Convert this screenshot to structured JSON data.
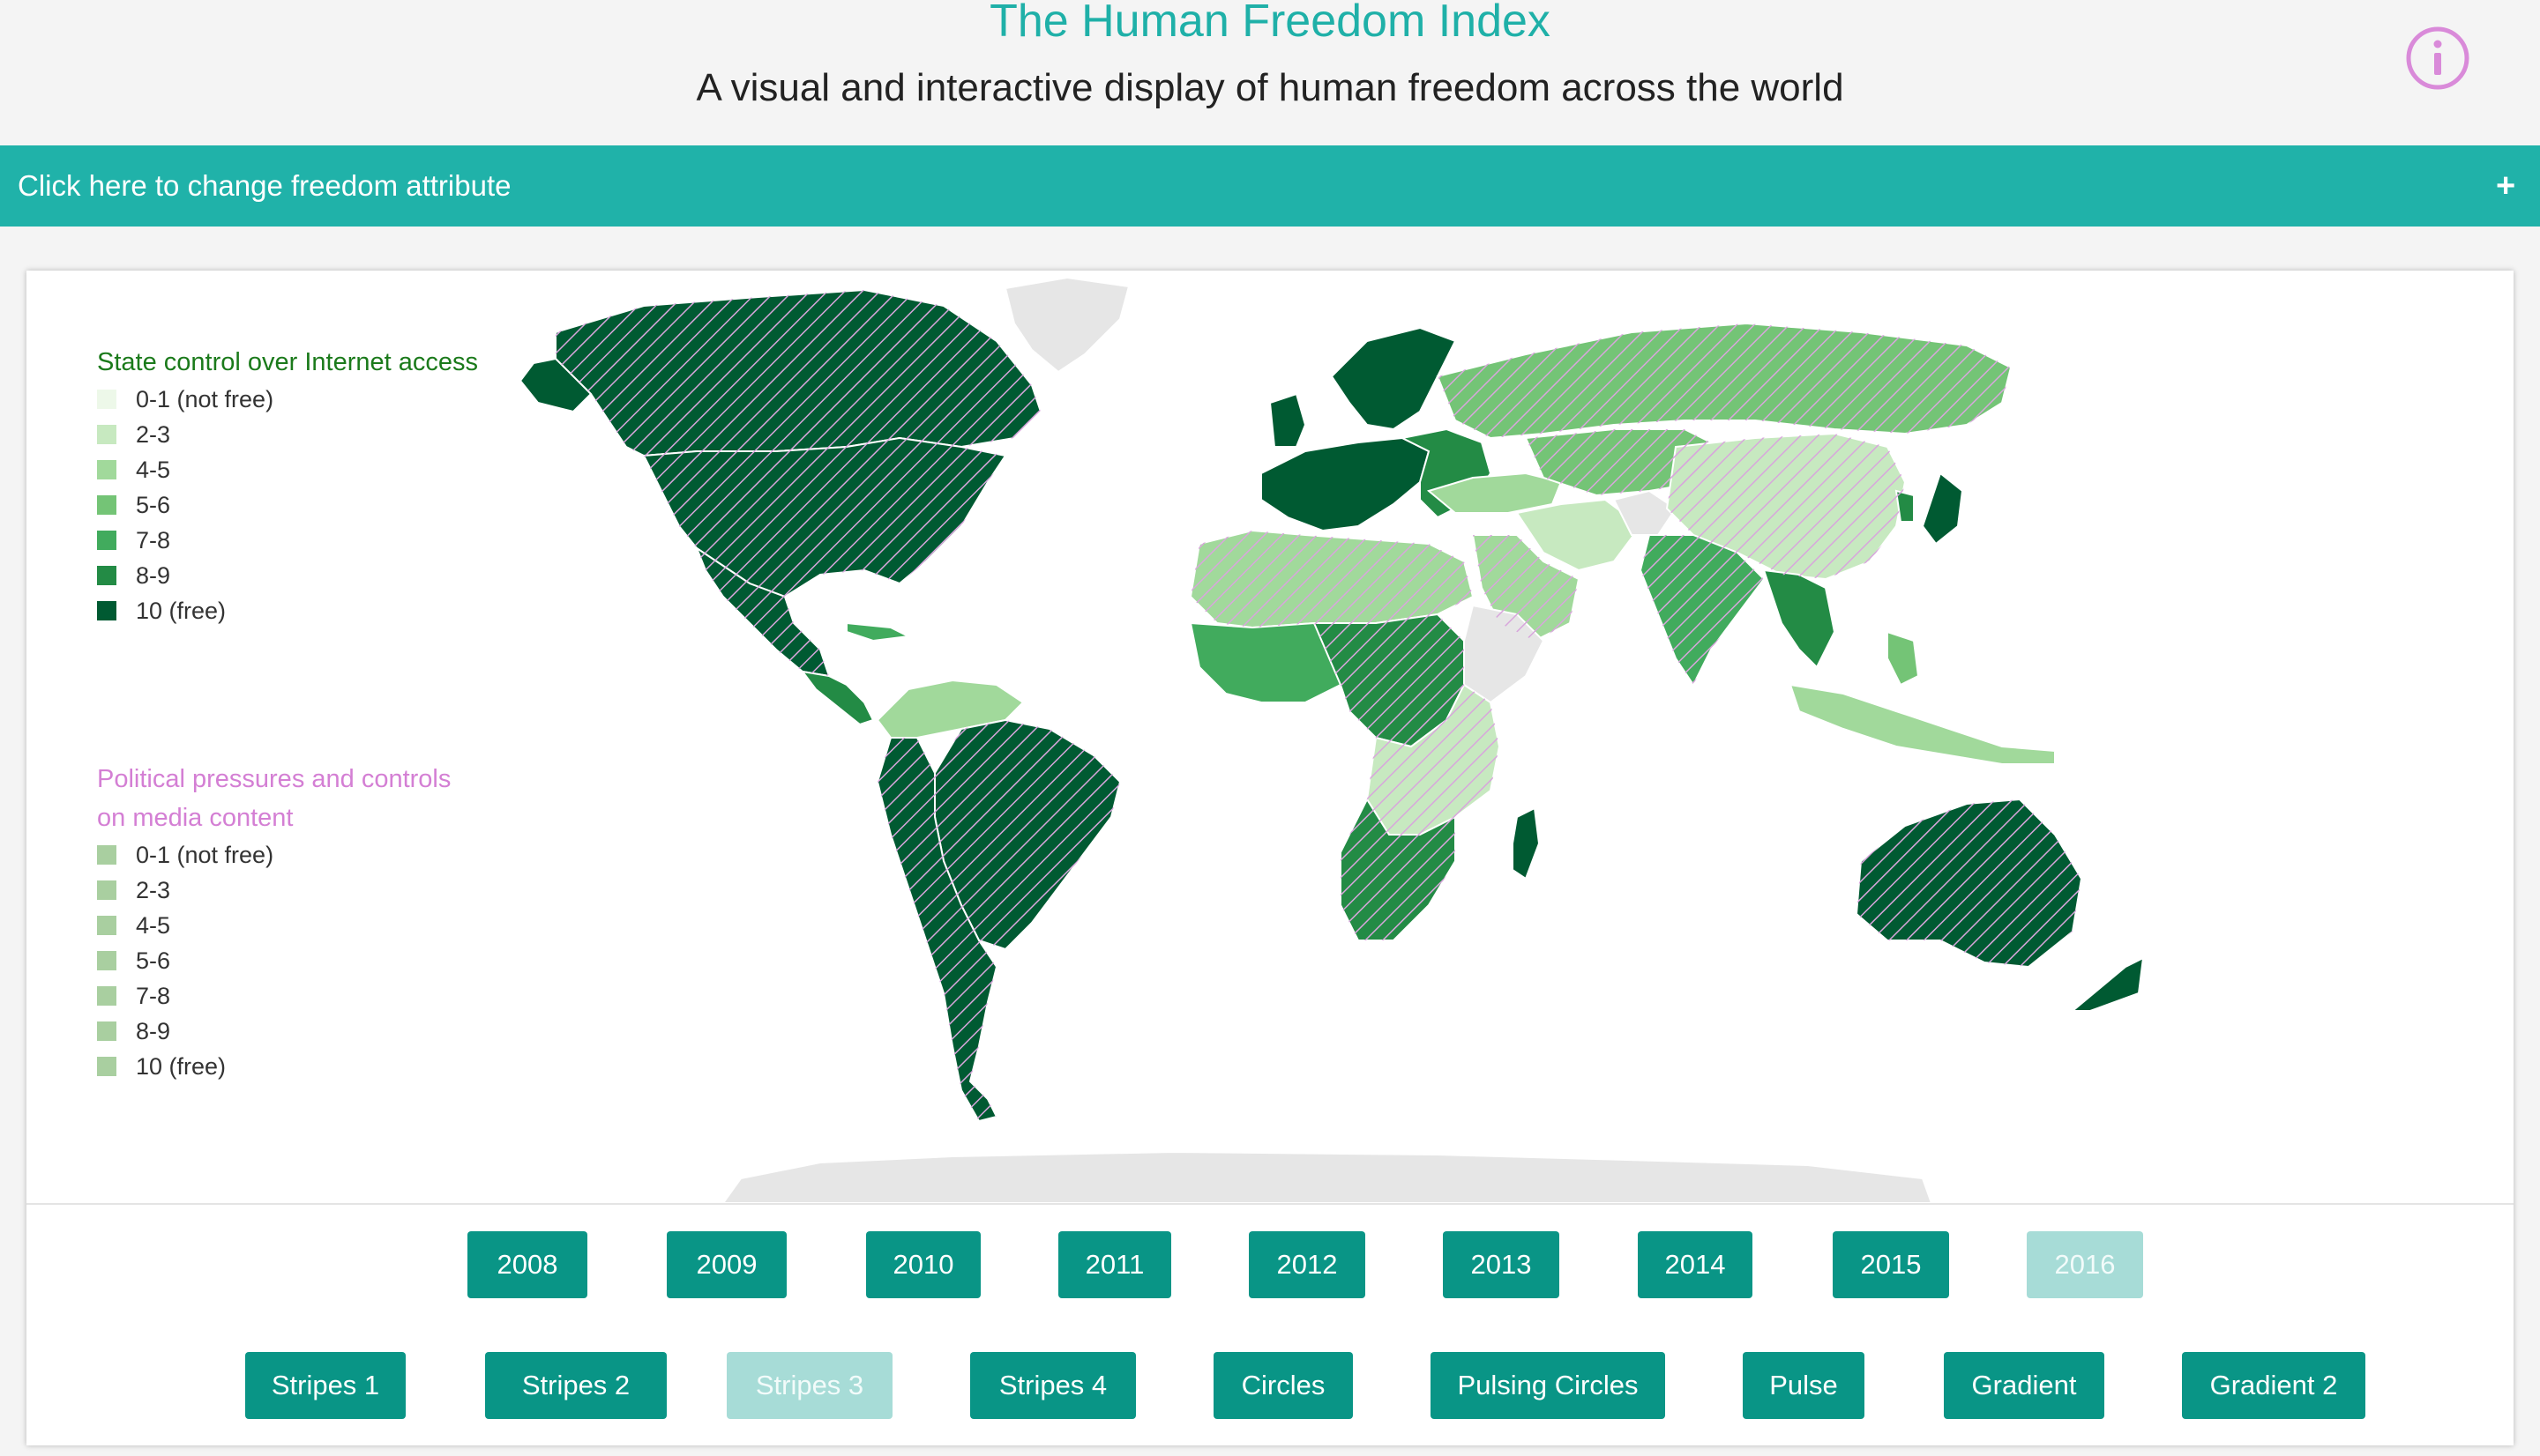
{
  "header": {
    "title": "The Human Freedom Index",
    "subtitle": "A visual and interactive display of human freedom across the world"
  },
  "attribute_bar": {
    "label": "Click here to change freedom attribute",
    "toggle": "+"
  },
  "legend_primary": {
    "title": "State control over Internet access",
    "items": [
      {
        "label": "0-1 (not free)",
        "color": "#edf8e9"
      },
      {
        "label": "2-3",
        "color": "#c7e9c0"
      },
      {
        "label": "4-5",
        "color": "#a1d99b"
      },
      {
        "label": "5-6",
        "color": "#74c476"
      },
      {
        "label": "7-8",
        "color": "#41ab5d"
      },
      {
        "label": "8-9",
        "color": "#238b45"
      },
      {
        "label": "10 (free)",
        "color": "#005a32"
      }
    ]
  },
  "legend_secondary": {
    "title": "Political pressures and controls on media content",
    "items": [
      {
        "label": "0-1 (not free)",
        "color": "#a9cfa0"
      },
      {
        "label": "2-3",
        "color": "#a9cfa0"
      },
      {
        "label": "4-5",
        "color": "#a9cfa0"
      },
      {
        "label": "5-6",
        "color": "#a9cfa0"
      },
      {
        "label": "7-8",
        "color": "#a9cfa0"
      },
      {
        "label": "8-9",
        "color": "#a9cfa0"
      },
      {
        "label": "10 (free)",
        "color": "#a9cfa0"
      }
    ]
  },
  "years": [
    "2008",
    "2009",
    "2010",
    "2011",
    "2012",
    "2013",
    "2014",
    "2015",
    "2016"
  ],
  "selected_year": "2016",
  "styles": [
    "Stripes 1",
    "Stripes 2",
    "Stripes 3",
    "Stripes 4",
    "Circles",
    "Pulsing Circles",
    "Pulse",
    "Gradient",
    "Gradient 2"
  ],
  "selected_style": "Stripes 3",
  "colors": {
    "accent": "#20b2a9",
    "button": "#099586",
    "button_active": "#a7dcd7",
    "no_data": "#e6e6e6",
    "stripe": "#d8a6dc"
  }
}
